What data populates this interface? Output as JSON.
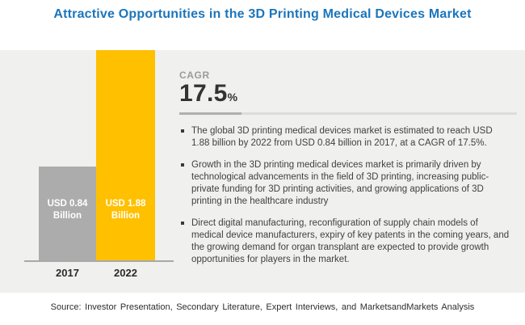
{
  "title": "Attractive Opportunities in the 3D Printing Medical Devices Market",
  "colors": {
    "title_blue": "#1b75bc",
    "bar_2017_gray": "#acacac",
    "bar_2022_gold": "#ffc000",
    "panel_background": "#f0f0ee",
    "body_text": "#404040"
  },
  "chart_data": {
    "type": "bar",
    "categories": [
      "2017",
      "2022"
    ],
    "values": [
      0.84,
      1.88
    ],
    "unit": "USD Billion",
    "bar_labels": [
      "USD 0.84 Billion",
      "USD 1.88 Billion"
    ],
    "bar_colors": [
      "#acacac",
      "#ffc000"
    ],
    "title": "",
    "xlabel": "",
    "ylabel": "",
    "ylim": [
      0,
      1.88
    ],
    "grid": false,
    "legend": "none"
  },
  "cagr": {
    "label": "CAGR",
    "value": "17.5",
    "percent_sign": "%"
  },
  "bullets": [
    "The global 3D printing medical devices market is estimated to reach USD 1.88 billion by 2022 from USD 0.84 billion in 2017, at a CAGR of 17.5%.",
    "Growth in the 3D printing medical devices market is primarily driven by technological advancements in the field of 3D printing, increasing public-private funding for 3D printing activities, and growing applications of 3D printing in the healthcare industry",
    "Direct digital manufacturing, reconfiguration of supply chain models of medical device manufacturers, expiry of key patents in the coming years, and the growing demand for organ transplant are expected to provide growth opportunities for players in the market."
  ],
  "source": "Source: Investor Presentation, Secondary Literature, Expert Interviews, and MarketsandMarkets Analysis"
}
